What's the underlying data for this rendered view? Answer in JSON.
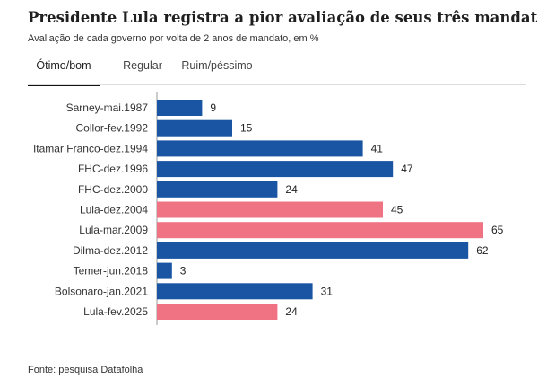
{
  "header": {
    "title": "Presidente Lula registra a pior avaliação de seus três mandatos",
    "subtitle": "Avaliação de cada governo por volta de 2 anos de mandato, em %"
  },
  "tabs": [
    {
      "label": "Ótimo/bom",
      "active": true
    },
    {
      "label": "Regular",
      "active": false
    },
    {
      "label": "Ruim/péssimo",
      "active": false
    }
  ],
  "colors": {
    "default_bar": "#1a55a4",
    "lula_bar": "#f07383",
    "axis": "#999999"
  },
  "chart_data": {
    "type": "bar",
    "orientation": "horizontal",
    "categories": [
      "Sarney-mai.1987",
      "Collor-fev.1992",
      "Itamar Franco-dez.1994",
      "FHC-dez.1996",
      "FHC-dez.2000",
      "Lula-dez.2004",
      "Lula-mar.2009",
      "Dilma-dez.2012",
      "Temer-jun.2018",
      "Bolsonaro-jan.2021",
      "Lula-fev.2025"
    ],
    "values": [
      9,
      15,
      41,
      47,
      24,
      45,
      65,
      62,
      3,
      31,
      24
    ],
    "highlight": [
      false,
      false,
      false,
      false,
      false,
      true,
      true,
      false,
      false,
      false,
      true
    ],
    "data_labels": true,
    "grid": false
  },
  "footer": {
    "source": "Fonte: pesquisa Datafolha"
  }
}
